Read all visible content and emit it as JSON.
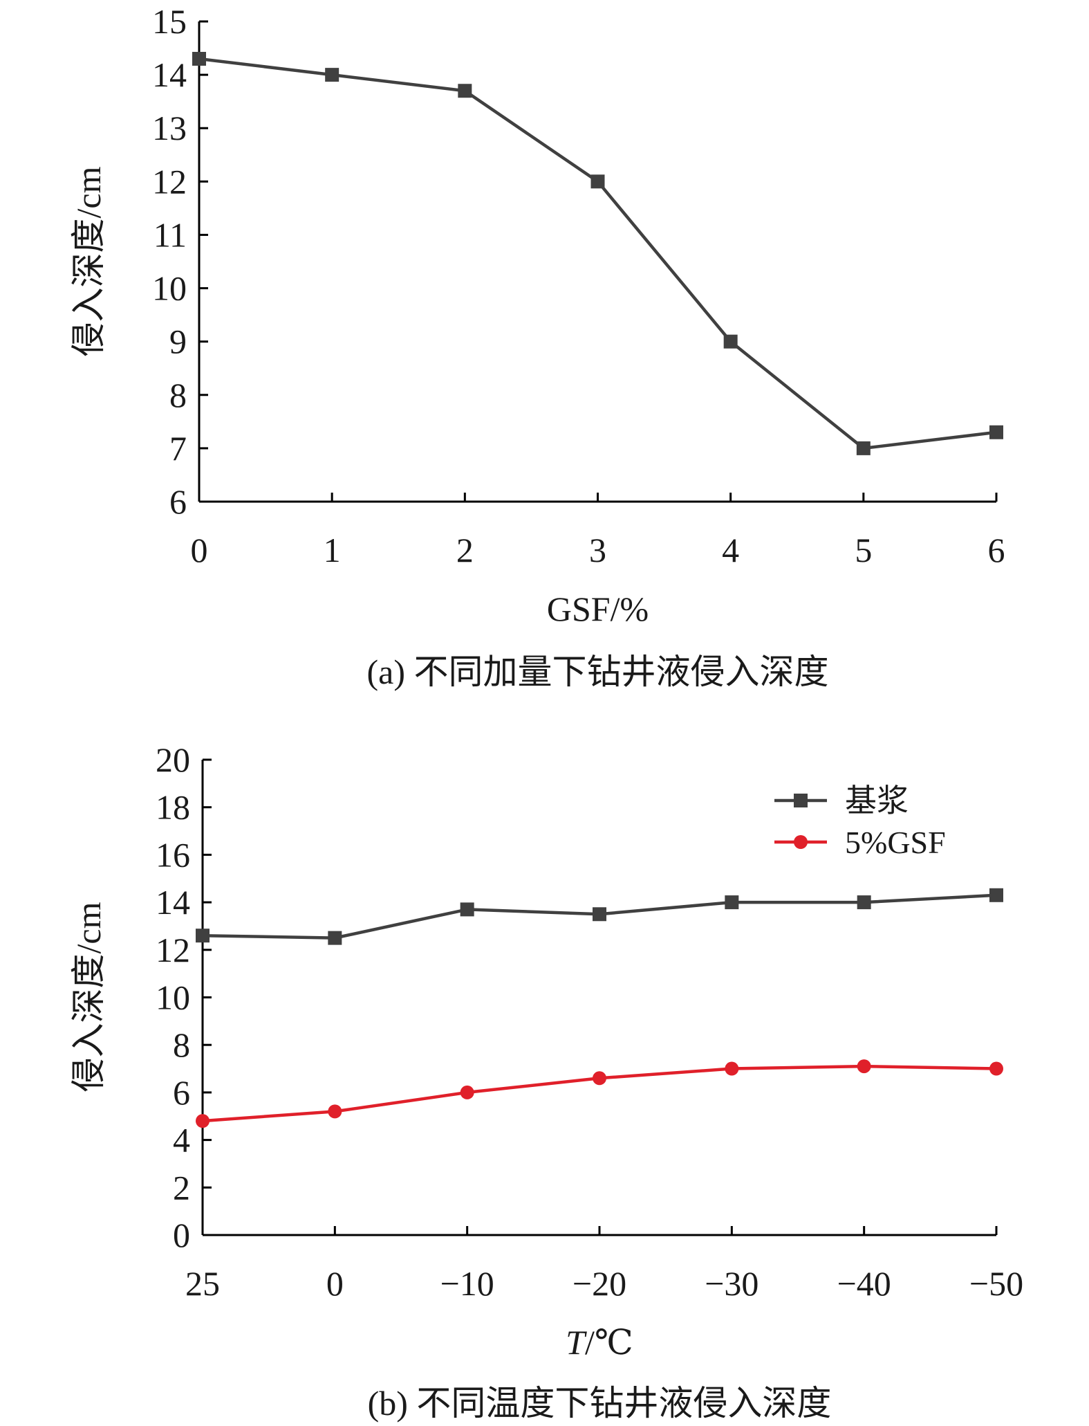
{
  "chart_data": [
    {
      "type": "line",
      "caption": "(a) 不同加量下钻井液侵入深度",
      "xlabel": "GSF/%",
      "ylabel": "侵入深度/cm",
      "x": [
        0,
        1,
        2,
        3,
        4,
        5,
        6
      ],
      "x_tick_labels": [
        "0",
        "1",
        "2",
        "3",
        "4",
        "5",
        "6"
      ],
      "ylim": [
        6,
        15
      ],
      "y_ticks": [
        6,
        7,
        8,
        9,
        10,
        11,
        12,
        13,
        14,
        15
      ],
      "y_tick_labels": [
        "6",
        "7",
        "8",
        "9",
        "10",
        "11",
        "12",
        "13",
        "14",
        "15"
      ],
      "grid": false,
      "legend": "none",
      "series": [
        {
          "values": [
            14.3,
            14.0,
            13.7,
            12.0,
            9.0,
            7.0,
            7.3
          ],
          "color": "#404040",
          "marker": "square"
        }
      ]
    },
    {
      "type": "line",
      "caption": "(b) 不同温度下钻井液侵入深度",
      "xlabel": "T/℃",
      "xlabel_italic_part": "T",
      "xlabel_rest": "/℃",
      "ylabel": "侵入深度/cm",
      "categories": [
        "25",
        "0",
        "−10",
        "−20",
        "−30",
        "−40",
        "−50"
      ],
      "ylim": [
        0,
        20
      ],
      "y_ticks": [
        0,
        2,
        4,
        6,
        8,
        10,
        12,
        14,
        16,
        18,
        20
      ],
      "y_tick_labels": [
        "0",
        "2",
        "4",
        "6",
        "8",
        "10",
        "12",
        "14",
        "16",
        "18",
        "20"
      ],
      "grid": false,
      "legend": "top-right",
      "series": [
        {
          "name": "基浆",
          "values": [
            12.6,
            12.5,
            13.7,
            13.5,
            14.0,
            14.0,
            14.3
          ],
          "color": "#404040",
          "marker": "square"
        },
        {
          "name": "5%GSF",
          "values": [
            4.8,
            5.2,
            6.0,
            6.6,
            7.0,
            7.1,
            7.0
          ],
          "color": "#e0202a",
          "marker": "circle"
        }
      ]
    }
  ]
}
